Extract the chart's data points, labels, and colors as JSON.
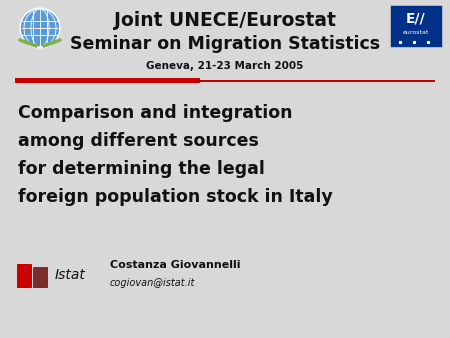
{
  "background_color": "#d8d8d8",
  "title_line1": "Joint UNECE/Eurostat",
  "title_line2": "Seminar on Migration Statistics",
  "subtitle": "Geneva, 21-23 March 2005",
  "main_text_line1": "Comparison and integration",
  "main_text_line2": "among different sources",
  "main_text_line3": "for determining the legal",
  "main_text_line4": "foreign population stock in Italy",
  "author_name": "Costanza Giovannelli",
  "author_email": "cogiovan@istat.it",
  "istat_text": "Istat",
  "red_bar_color": "#c80000",
  "thin_line_color": "#c80000",
  "text_color_dark": "#111111",
  "un_blue": "#5b9bd5",
  "eurostat_blue": "#003087",
  "istat_red": "#cc0000",
  "istat_maroon": "#7b2d2d",
  "title1_fontsize": 13.5,
  "title2_fontsize": 12.5,
  "subtitle_fontsize": 7.5,
  "main_fontsize": 12.5,
  "author_fontsize": 8,
  "email_fontsize": 7,
  "istat_label_fontsize": 10
}
